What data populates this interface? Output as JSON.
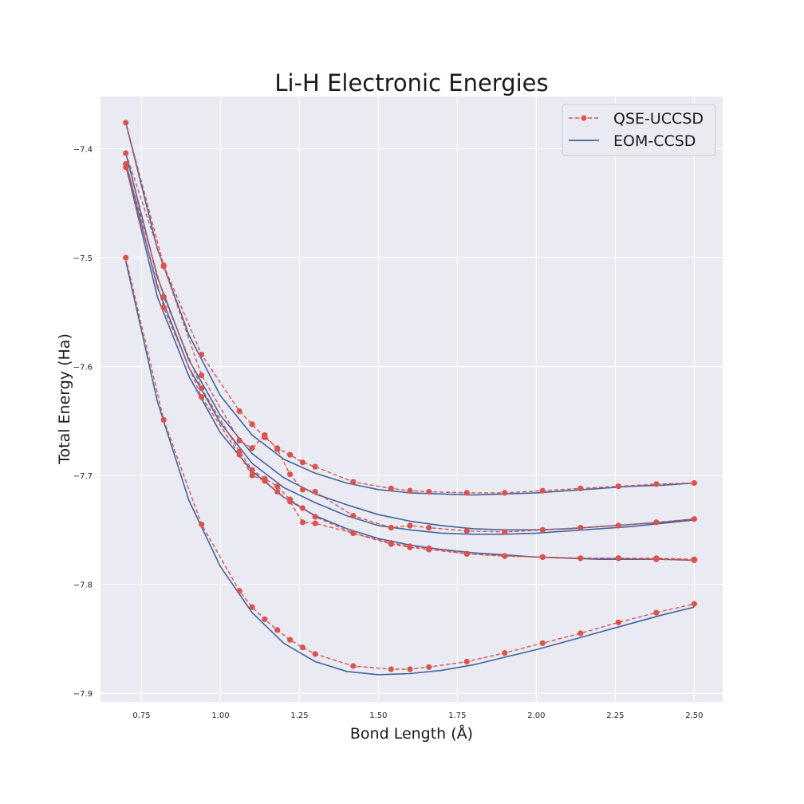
{
  "chart_data": {
    "type": "line",
    "title": "Li-H Electronic Energies",
    "xlabel": "Bond Length (Å)",
    "ylabel": "Total Energy (Ha)",
    "xlim": [
      0.62,
      2.59
    ],
    "ylim": [
      -7.908,
      -7.352
    ],
    "xticks": [
      "0.75",
      "1.00",
      "1.25",
      "1.50",
      "1.75",
      "2.00",
      "2.25",
      "2.50"
    ],
    "yticks": [
      "−7.4",
      "−7.5",
      "−7.6",
      "−7.7",
      "−7.8",
      "−7.9"
    ],
    "grid": true,
    "legend_position": "top-right",
    "colors": {
      "qse": "#d9534f",
      "eom": "#4264a0",
      "plot_bg": "#eaeaf2",
      "grid": "#ffffff"
    },
    "legend": [
      {
        "label": "QSE-UCCSD",
        "style": "dashed-marker",
        "color": "#d9534f"
      },
      {
        "label": "EOM-CCSD",
        "style": "solid",
        "color": "#4264a0"
      }
    ],
    "series": [
      {
        "method": "EOM-CCSD",
        "style": "solid",
        "x": [
          0.7,
          0.8,
          0.9,
          1.0,
          1.1,
          1.2,
          1.3,
          1.4,
          1.5,
          1.6,
          1.7,
          1.8,
          1.9,
          2.0,
          2.1,
          2.2,
          2.3,
          2.4,
          2.5
        ],
        "values": [
          -7.503,
          -7.632,
          -7.723,
          -7.784,
          -7.826,
          -7.854,
          -7.871,
          -7.88,
          -7.883,
          -7.882,
          -7.879,
          -7.874,
          -7.867,
          -7.86,
          -7.852,
          -7.844,
          -7.836,
          -7.828,
          -7.821
        ]
      },
      {
        "method": "QSE-UCCSD",
        "style": "dashed-marker",
        "x": [
          0.7,
          0.82,
          0.94,
          1.06,
          1.1,
          1.14,
          1.18,
          1.22,
          1.26,
          1.3,
          1.42,
          1.54,
          1.6,
          1.66,
          1.78,
          1.9,
          2.02,
          2.14,
          2.26,
          2.38,
          2.5
        ],
        "values": [
          -7.5,
          -7.649,
          -7.745,
          -7.806,
          -7.821,
          -7.832,
          -7.842,
          -7.851,
          -7.858,
          -7.864,
          -7.875,
          -7.878,
          -7.878,
          -7.876,
          -7.871,
          -7.863,
          -7.854,
          -7.845,
          -7.835,
          -7.826,
          -7.818
        ]
      },
      {
        "method": "EOM-CCSD",
        "style": "solid",
        "x": [
          0.7,
          0.8,
          0.9,
          1.0,
          1.1,
          1.2,
          1.3,
          1.4,
          1.5,
          1.6,
          1.7,
          1.8,
          1.9,
          2.0,
          2.1,
          2.2,
          2.3,
          2.4,
          2.5
        ],
        "values": [
          -7.415,
          -7.536,
          -7.609,
          -7.661,
          -7.696,
          -7.72,
          -7.737,
          -7.749,
          -7.758,
          -7.764,
          -7.768,
          -7.771,
          -7.773,
          -7.775,
          -7.776,
          -7.777,
          -7.777,
          -7.777,
          -7.778
        ]
      },
      {
        "method": "QSE-UCCSD",
        "style": "dashed-marker",
        "x": [
          0.7,
          0.82,
          0.94,
          1.06,
          1.1,
          1.14,
          1.18,
          1.22,
          1.26,
          1.3,
          1.42,
          1.54,
          1.6,
          1.66,
          1.78,
          1.9,
          2.02,
          2.14,
          2.26,
          2.38,
          2.5
        ],
        "values": [
          -7.417,
          -7.546,
          -7.628,
          -7.681,
          -7.7,
          -7.705,
          -7.715,
          -7.724,
          -7.743,
          -7.744,
          -7.753,
          -7.763,
          -7.766,
          -7.768,
          -7.772,
          -7.774,
          -7.775,
          -7.776,
          -7.776,
          -7.776,
          -7.777
        ]
      },
      {
        "method": "EOM-CCSD",
        "style": "solid",
        "x": [
          0.7,
          0.8,
          0.9,
          1.0,
          1.1,
          1.2,
          1.3,
          1.4,
          1.5,
          1.6,
          1.7,
          1.8,
          1.9,
          2.0,
          2.1,
          2.2,
          2.3,
          2.4,
          2.5
        ],
        "values": [
          -7.412,
          -7.527,
          -7.601,
          -7.652,
          -7.689,
          -7.711,
          -7.725,
          -7.737,
          -7.746,
          -7.75,
          -7.753,
          -7.754,
          -7.754,
          -7.753,
          -7.751,
          -7.749,
          -7.747,
          -7.744,
          -7.741
        ]
      },
      {
        "method": "QSE-UCCSD",
        "style": "dashed-marker",
        "x": [
          0.7,
          0.82,
          0.94,
          1.06,
          1.1,
          1.14,
          1.18,
          1.22,
          1.26,
          1.3,
          1.42,
          1.54,
          1.6,
          1.66,
          1.78,
          1.9,
          2.02,
          2.14,
          2.26,
          2.38,
          2.5
        ],
        "values": [
          -7.414,
          -7.536,
          -7.62,
          -7.678,
          -7.695,
          -7.703,
          -7.71,
          -7.722,
          -7.73,
          -7.738,
          -7.753,
          -7.762,
          -7.765,
          -7.767,
          -7.772,
          -7.774,
          -7.775,
          -7.776,
          -7.776,
          -7.777,
          -7.778
        ]
      },
      {
        "method": "EOM-CCSD",
        "style": "solid",
        "x": [
          0.7,
          0.8,
          0.9,
          1.0,
          1.1,
          1.2,
          1.3,
          1.4,
          1.5,
          1.6,
          1.7,
          1.8,
          1.9,
          2.0,
          2.1,
          2.2,
          2.3,
          2.4,
          2.5
        ],
        "values": [
          -7.404,
          -7.518,
          -7.594,
          -7.645,
          -7.68,
          -7.702,
          -7.717,
          -7.727,
          -7.736,
          -7.742,
          -7.746,
          -7.749,
          -7.75,
          -7.75,
          -7.749,
          -7.747,
          -7.745,
          -7.743,
          -7.74
        ]
      },
      {
        "method": "QSE-UCCSD",
        "style": "dashed-marker",
        "x": [
          0.7,
          0.82,
          0.94,
          1.06,
          1.1,
          1.14,
          1.18,
          1.22,
          1.26,
          1.3,
          1.42,
          1.54,
          1.6,
          1.66,
          1.78,
          1.9,
          2.02,
          2.14,
          2.26,
          2.38,
          2.5
        ],
        "values": [
          -7.404,
          -7.508,
          -7.608,
          -7.668,
          -7.675,
          -7.663,
          -7.676,
          -7.699,
          -7.713,
          -7.715,
          -7.737,
          -7.748,
          -7.746,
          -7.748,
          -7.751,
          -7.752,
          -7.75,
          -7.748,
          -7.746,
          -7.743,
          -7.74
        ]
      },
      {
        "method": "EOM-CCSD",
        "style": "solid",
        "x": [
          0.7,
          0.8,
          0.9,
          1.0,
          1.1,
          1.2,
          1.3,
          1.4,
          1.5,
          1.6,
          1.7,
          1.8,
          1.9,
          2.0,
          2.1,
          2.2,
          2.3,
          2.4,
          2.5
        ],
        "values": [
          -7.376,
          -7.492,
          -7.571,
          -7.627,
          -7.663,
          -7.685,
          -7.698,
          -7.707,
          -7.713,
          -7.716,
          -7.717,
          -7.718,
          -7.717,
          -7.716,
          -7.714,
          -7.712,
          -7.71,
          -7.709,
          -7.707
        ]
      },
      {
        "method": "QSE-UCCSD",
        "style": "dashed-marker",
        "x": [
          0.7,
          0.82,
          0.94,
          1.06,
          1.1,
          1.14,
          1.18,
          1.22,
          1.26,
          1.3,
          1.42,
          1.54,
          1.6,
          1.66,
          1.78,
          1.9,
          2.02,
          2.14,
          2.26,
          2.38,
          2.5
        ],
        "values": [
          -7.376,
          -7.507,
          -7.589,
          -7.641,
          -7.653,
          -7.665,
          -7.675,
          -7.681,
          -7.688,
          -7.692,
          -7.706,
          -7.712,
          -7.714,
          -7.715,
          -7.716,
          -7.716,
          -7.714,
          -7.712,
          -7.71,
          -7.708,
          -7.707
        ]
      }
    ]
  }
}
